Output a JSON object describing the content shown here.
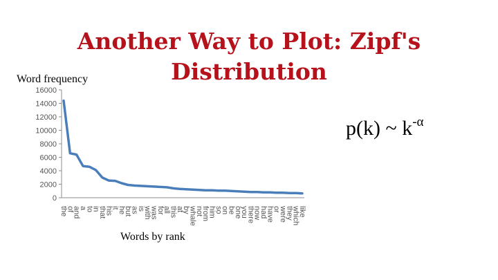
{
  "slide": {
    "title": "Another Way to Plot: Zipf's Distribution",
    "formula_base": "p(k) ~ k",
    "formula_exponent": "-α"
  },
  "chart_data": {
    "type": "line",
    "xlabel": "Words by rank",
    "ylabel": "Word frequency",
    "ylim": [
      0,
      16000
    ],
    "yticks": [
      0,
      2000,
      4000,
      6000,
      8000,
      10000,
      12000,
      14000,
      16000
    ],
    "grid": false,
    "line_color": "#4a7ebb",
    "categories": [
      "the",
      "of",
      "and",
      "a",
      "to",
      "in",
      "that",
      "his",
      "it",
      "he",
      "but",
      "as",
      "is",
      "with",
      "was",
      "for",
      "all",
      "this",
      "at",
      "by",
      "whale",
      "not",
      "from",
      "him",
      "so",
      "on",
      "be",
      "one",
      "you",
      "there",
      "now",
      "had",
      "have",
      "or",
      "were",
      "they",
      "which",
      "like"
    ],
    "series": [
      {
        "values": [
          14400,
          6600,
          6400,
          4700,
          4600,
          4100,
          3000,
          2550,
          2500,
          2150,
          1900,
          1800,
          1750,
          1700,
          1650,
          1600,
          1550,
          1400,
          1300,
          1250,
          1200,
          1150,
          1100,
          1100,
          1050,
          1050,
          1000,
          950,
          900,
          850,
          850,
          800,
          800,
          750,
          750,
          700,
          700,
          650
        ]
      }
    ]
  }
}
